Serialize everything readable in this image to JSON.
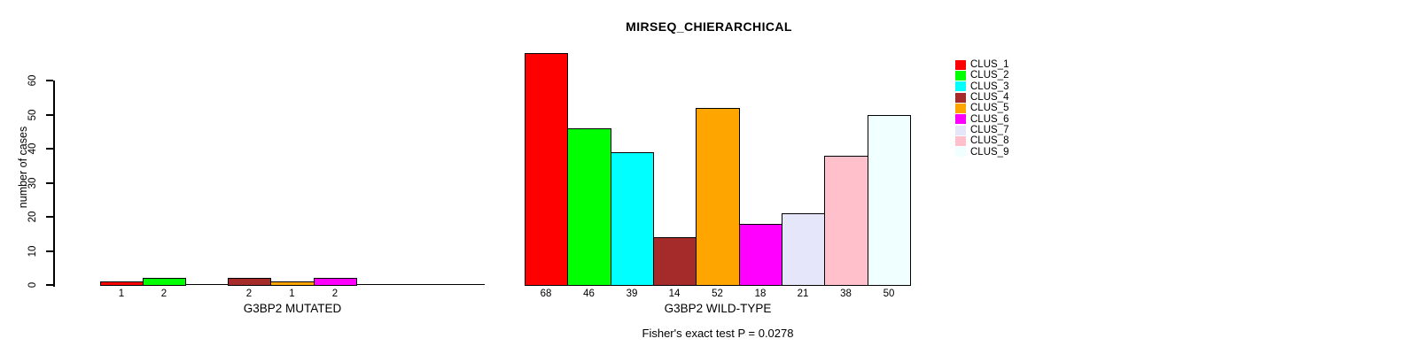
{
  "title": "MIRSEQ_CHIERARCHICAL",
  "subtitle": "Fisher's exact test P = 0.0278",
  "ylabel": "number of cases",
  "legend": {
    "position": "right",
    "entries": [
      {
        "label": "CLUS_1",
        "color": "#FF0000"
      },
      {
        "label": "CLUS_2",
        "color": "#00FF00"
      },
      {
        "label": "CLUS_3",
        "color": "#00FFFF"
      },
      {
        "label": "CLUS_4",
        "color": "#A52A2A"
      },
      {
        "label": "CLUS_5",
        "color": "#FFA500"
      },
      {
        "label": "CLUS_6",
        "color": "#FF00FF"
      },
      {
        "label": "CLUS_7",
        "color": "#E6E6FA"
      },
      {
        "label": "CLUS_8",
        "color": "#FFC0CB"
      },
      {
        "label": "CLUS_9",
        "color": "#F0FFFF"
      }
    ]
  },
  "chart_data": [
    {
      "type": "bar",
      "panel": "mutated",
      "xlabel": "G3BP2 MUTATED",
      "ylabel": "number of cases",
      "categories": [
        "CLUS_1",
        "CLUS_2",
        "CLUS_3",
        "CLUS_4",
        "CLUS_5",
        "CLUS_6",
        "CLUS_7",
        "CLUS_8",
        "CLUS_9"
      ],
      "values": [
        1,
        2,
        0,
        2,
        1,
        2,
        0,
        0,
        0
      ],
      "bar_labels": [
        "1",
        "2",
        "",
        "2",
        "1",
        "2",
        "",
        "",
        ""
      ],
      "colors": [
        "#FF0000",
        "#00FF00",
        "#00FFFF",
        "#A52A2A",
        "#FFA500",
        "#FF00FF",
        "#E6E6FA",
        "#FFC0CB",
        "#F0FFFF"
      ],
      "ylim": [
        0,
        60
      ],
      "yticks": [
        0,
        10,
        20,
        30,
        40,
        50,
        60
      ],
      "grid": false,
      "legend_position": "none"
    },
    {
      "type": "bar",
      "panel": "wild-type",
      "xlabel": "G3BP2 WILD-TYPE",
      "ylabel": "number of cases",
      "categories": [
        "CLUS_1",
        "CLUS_2",
        "CLUS_3",
        "CLUS_4",
        "CLUS_5",
        "CLUS_6",
        "CLUS_7",
        "CLUS_8",
        "CLUS_9"
      ],
      "values": [
        68,
        46,
        39,
        14,
        52,
        18,
        21,
        38,
        50
      ],
      "bar_labels": [
        "68",
        "46",
        "39",
        "14",
        "52",
        "18",
        "21",
        "38",
        "50"
      ],
      "colors": [
        "#FF0000",
        "#00FF00",
        "#00FFFF",
        "#A52A2A",
        "#FFA500",
        "#FF00FF",
        "#E6E6FA",
        "#FFC0CB",
        "#F0FFFF"
      ],
      "ylim": [
        0,
        60
      ],
      "yticks": [
        0,
        10,
        20,
        30,
        40,
        50,
        60
      ],
      "grid": false,
      "legend_position": "right"
    }
  ]
}
